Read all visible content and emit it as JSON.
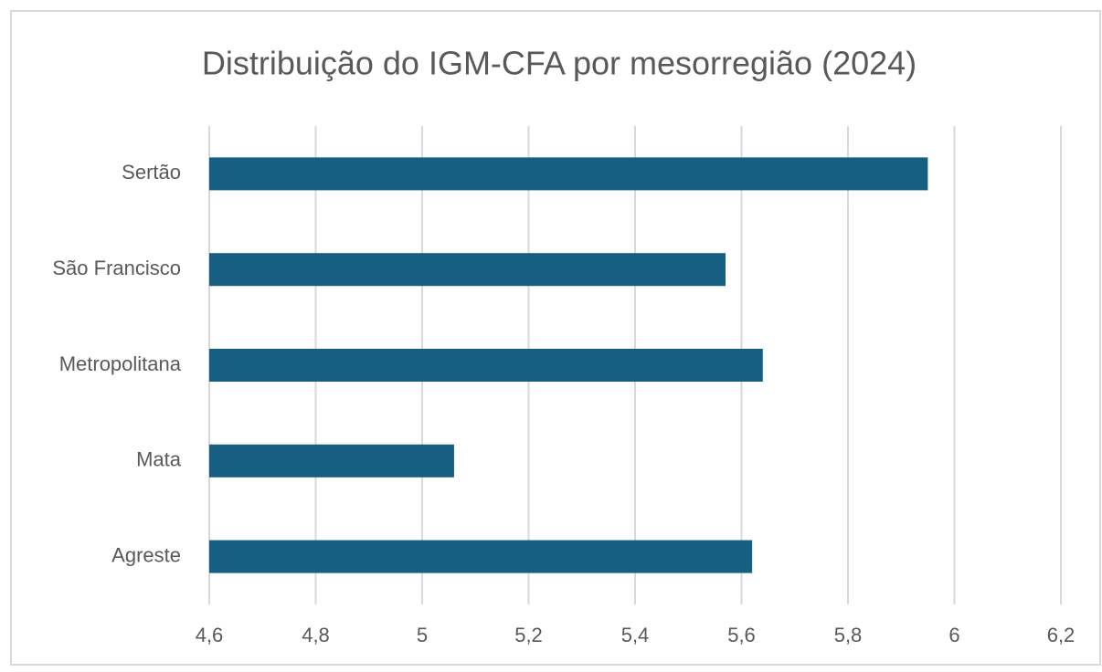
{
  "chart_data": {
    "type": "bar",
    "orientation": "horizontal",
    "title": "Distribuição do IGM-CFA por mesorregião (2024)",
    "categories": [
      "Sertão",
      "São Francisco",
      "Metropolitana",
      "Mata",
      "Agreste"
    ],
    "values": [
      5.95,
      5.57,
      5.64,
      5.06,
      5.62
    ],
    "color": "#175f82",
    "xlim": [
      4.6,
      6.2
    ],
    "xticks": [
      {
        "value": 4.6,
        "label": "4,6"
      },
      {
        "value": 4.8,
        "label": "4,8"
      },
      5,
      {
        "value": 5.2,
        "label": "5,2"
      },
      {
        "value": 5.4,
        "label": "5,4"
      },
      {
        "value": 5.6,
        "label": "5,6"
      },
      {
        "value": 5.8,
        "label": "5,8"
      },
      6,
      {
        "value": 6.2,
        "label": "6,2"
      }
    ],
    "grid": true
  }
}
